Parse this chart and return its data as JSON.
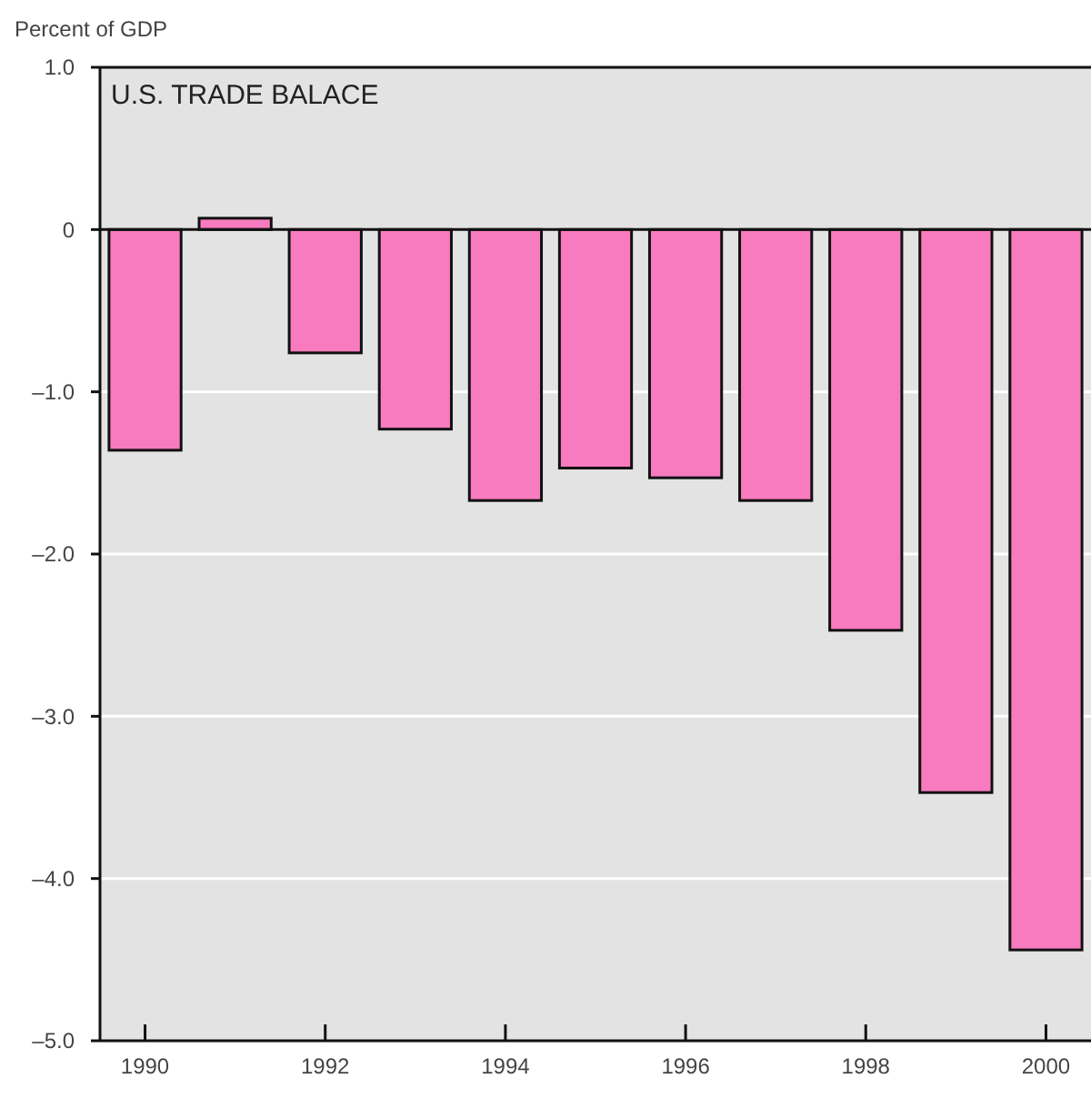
{
  "chart_data": {
    "type": "bar",
    "title": "U.S. TRADE BALACE",
    "ylabel": "Percent of GDP",
    "categories": [
      "1990",
      null,
      "1992",
      null,
      "1994",
      null,
      "1996",
      null,
      "1998",
      null,
      "2000"
    ],
    "values": [
      -1.36,
      0.07,
      -0.76,
      -1.23,
      -1.67,
      -1.47,
      -1.53,
      -1.67,
      -2.47,
      -3.47,
      -4.44
    ],
    "color": "#f87bbf",
    "ylim": [
      -5,
      1
    ],
    "yticks": [
      {
        "value": 1,
        "label": "1.0"
      },
      0,
      {
        "value": -1,
        "label": "–1.0"
      },
      {
        "value": -2,
        "label": "–2.0"
      },
      {
        "value": -3,
        "label": "–3.0"
      },
      {
        "value": -4,
        "label": "–4.0"
      },
      {
        "value": -5,
        "label": "–5.0"
      }
    ],
    "grid": "y"
  }
}
